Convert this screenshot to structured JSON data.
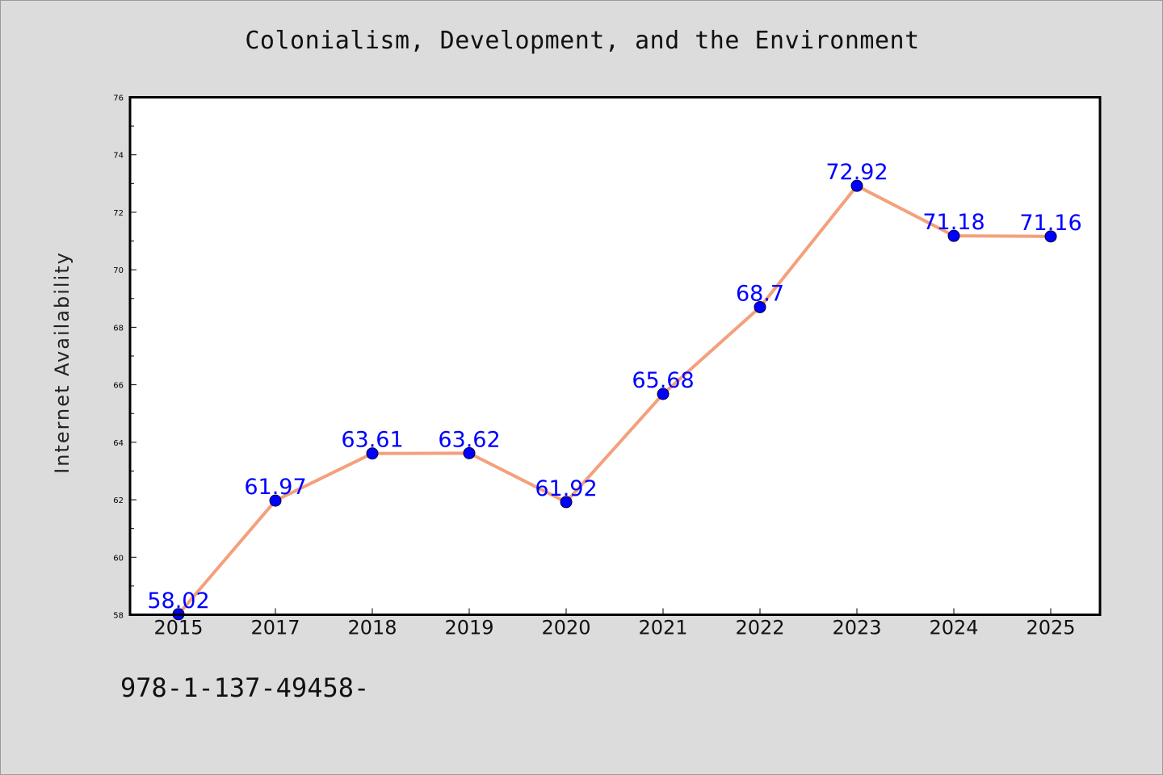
{
  "chart_data": {
    "type": "line",
    "title": "Colonialism, Development, and the Environment",
    "xlabel": "",
    "ylabel": "Internet Availability",
    "categories": [
      "2015",
      "2017",
      "2018",
      "2019",
      "2020",
      "2021",
      "2022",
      "2023",
      "2024",
      "2025"
    ],
    "values": [
      58.02,
      61.97,
      63.61,
      63.62,
      61.92,
      65.68,
      68.7,
      72.92,
      71.18,
      71.16
    ],
    "data_labels": [
      "58.02",
      "61.97",
      "63.61",
      "63.62",
      "61.92",
      "65.68",
      "68.7",
      "72.92",
      "71.18",
      "71.16"
    ],
    "ylim": [
      58,
      76
    ],
    "yticks": [
      58,
      60,
      62,
      64,
      66,
      68,
      70,
      72,
      74,
      76
    ],
    "grid": false,
    "legend": "none",
    "line_color": "#f4a07c",
    "marker_color": "#0000ff",
    "label_color": "#0000ff"
  },
  "footer": {
    "code": "978-1-137-49458-"
  }
}
